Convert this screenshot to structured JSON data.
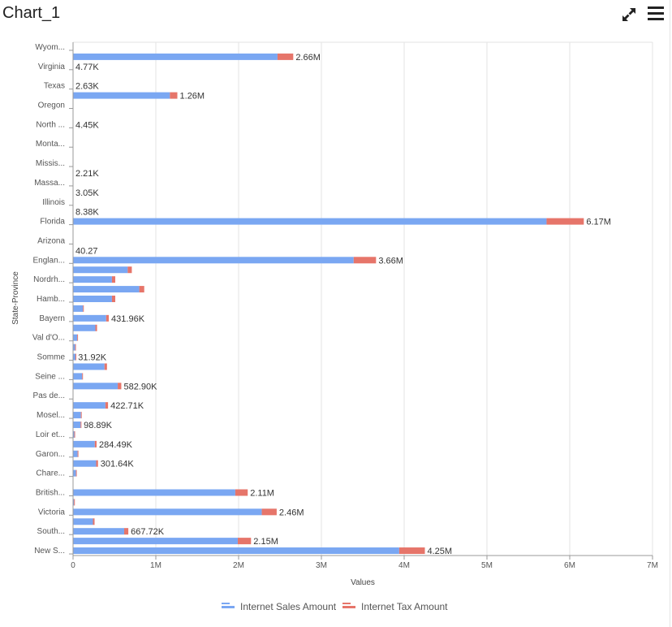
{
  "header": {
    "title": "Chart_1",
    "expand_icon": "expand-arrows-icon",
    "menu_icon": "hamburger-menu-icon"
  },
  "colors": {
    "sales": "#7aa7f2",
    "tax": "#e6756a",
    "grid": "#e3e3e3",
    "axis": "#999999"
  },
  "chart_data": {
    "type": "bar",
    "orientation": "horizontal",
    "stacked": true,
    "xlabel": "Values",
    "ylabel": "State-Province",
    "xlim": [
      0,
      7000000
    ],
    "xticks": [
      {
        "v": 0,
        "t": "0"
      },
      {
        "v": 1000000,
        "t": "1M"
      },
      {
        "v": 2000000,
        "t": "2M"
      },
      {
        "v": 3000000,
        "t": "3M"
      },
      {
        "v": 4000000,
        "t": "4M"
      },
      {
        "v": 5000000,
        "t": "5M"
      },
      {
        "v": 6000000,
        "t": "6M"
      },
      {
        "v": 7000000,
        "t": "7M"
      }
    ],
    "grid": true,
    "legend_position": "bottom",
    "categories": [
      "Wyom...",
      "Virginia",
      "Texas",
      "Oregon",
      "North ...",
      "Monta...",
      "Missis...",
      "Massa...",
      "Illinois",
      "Florida",
      "Arizona",
      "Englan...",
      "Nordrh...",
      "Hamb...",
      "Bayern",
      "Val d'O...",
      "Somme",
      "Seine ...",
      "Pas de...",
      "Mosel...",
      "Loir et...",
      "Garon...",
      "Chare...",
      "British...",
      "Victoria",
      "South...",
      "New S..."
    ],
    "series": [
      {
        "name": "Internet Sales Amount",
        "color": "#7aa7f2"
      },
      {
        "name": "Internet Tax Amount",
        "color": "#e6756a"
      }
    ],
    "bars": [
      {
        "pos": 1,
        "sales": 2470000,
        "tax": 190000,
        "label": "2.66M"
      },
      {
        "pos": 2,
        "sales": 0,
        "tax": 0,
        "label": "4.77K"
      },
      {
        "pos": 4,
        "sales": 0,
        "tax": 0,
        "label": "2.63K"
      },
      {
        "pos": 5,
        "sales": 1170000,
        "tax": 90000,
        "label": "1.26M"
      },
      {
        "pos": 8,
        "sales": 0,
        "tax": 0,
        "label": "4.45K"
      },
      {
        "pos": 13,
        "sales": 0,
        "tax": 0,
        "label": "2.21K"
      },
      {
        "pos": 15,
        "sales": 0,
        "tax": 0,
        "label": "3.05K"
      },
      {
        "pos": 17,
        "sales": 0,
        "tax": 0,
        "label": "8.38K"
      },
      {
        "pos": 18,
        "sales": 5720000,
        "tax": 450000,
        "label": "6.17M"
      },
      {
        "pos": 21,
        "sales": 0,
        "tax": 0,
        "label": "40.27"
      },
      {
        "pos": 22,
        "sales": 3390000,
        "tax": 270000,
        "label": "3.66M"
      },
      {
        "pos": 23,
        "sales": 660000,
        "tax": 50000,
        "label": ""
      },
      {
        "pos": 24,
        "sales": 470000,
        "tax": 40000,
        "label": ""
      },
      {
        "pos": 25,
        "sales": 800000,
        "tax": 60000,
        "label": ""
      },
      {
        "pos": 26,
        "sales": 470000,
        "tax": 40000,
        "label": ""
      },
      {
        "pos": 27,
        "sales": 120000,
        "tax": 10000,
        "label": ""
      },
      {
        "pos": 28,
        "sales": 400000,
        "tax": 31960,
        "label": "431.96K"
      },
      {
        "pos": 29,
        "sales": 270000,
        "tax": 20000,
        "label": ""
      },
      {
        "pos": 30,
        "sales": 50000,
        "tax": 4000,
        "label": ""
      },
      {
        "pos": 31,
        "sales": 25000,
        "tax": 2000,
        "label": ""
      },
      {
        "pos": 32,
        "sales": 29500,
        "tax": 2420,
        "label": "31.92K"
      },
      {
        "pos": 33,
        "sales": 380000,
        "tax": 30000,
        "label": ""
      },
      {
        "pos": 34,
        "sales": 110000,
        "tax": 9000,
        "label": ""
      },
      {
        "pos": 35,
        "sales": 540000,
        "tax": 42900,
        "label": "582.90K"
      },
      {
        "pos": 37,
        "sales": 391000,
        "tax": 31710,
        "label": "422.71K"
      },
      {
        "pos": 38,
        "sales": 95000,
        "tax": 8000,
        "label": ""
      },
      {
        "pos": 39,
        "sales": 91500,
        "tax": 7390,
        "label": "98.89K"
      },
      {
        "pos": 40,
        "sales": 15000,
        "tax": 1200,
        "label": ""
      },
      {
        "pos": 41,
        "sales": 263000,
        "tax": 21490,
        "label": "284.49K"
      },
      {
        "pos": 42,
        "sales": 55000,
        "tax": 4000,
        "label": ""
      },
      {
        "pos": 43,
        "sales": 279000,
        "tax": 22640,
        "label": "301.64K"
      },
      {
        "pos": 44,
        "sales": 35000,
        "tax": 3000,
        "label": ""
      },
      {
        "pos": 46,
        "sales": 1960000,
        "tax": 150000,
        "label": "2.11M"
      },
      {
        "pos": 47,
        "sales": 12000,
        "tax": 1000,
        "label": ""
      },
      {
        "pos": 48,
        "sales": 2280000,
        "tax": 180000,
        "label": "2.46M"
      },
      {
        "pos": 49,
        "sales": 240000,
        "tax": 20000,
        "label": ""
      },
      {
        "pos": 50,
        "sales": 617720,
        "tax": 50000,
        "label": "667.72K"
      },
      {
        "pos": 51,
        "sales": 1990000,
        "tax": 160000,
        "label": "2.15M"
      },
      {
        "pos": 52,
        "sales": 3940000,
        "tax": 310000,
        "label": "4.25M"
      }
    ]
  }
}
